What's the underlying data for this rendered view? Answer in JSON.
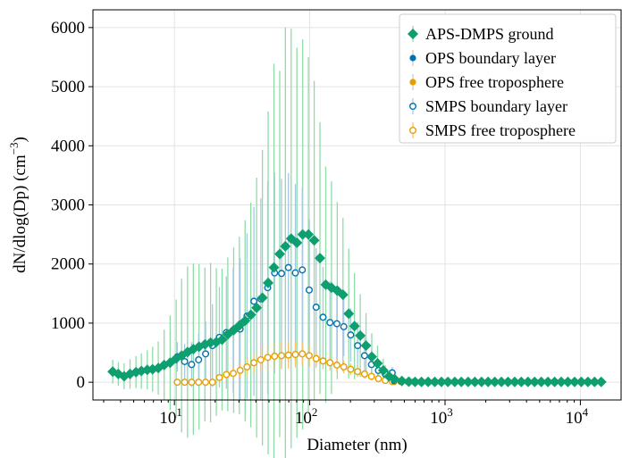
{
  "chart_data": {
    "type": "scatter",
    "xlabel": "Diameter (nm)",
    "ylabel": "dN/dlog(Dp) (cm",
    "ylabel_superscript": "−3",
    "ylabel_close": ")",
    "x_scale": "log",
    "xlim": [
      2.5,
      20000
    ],
    "ylim": [
      -300,
      6300
    ],
    "x_tick_base": "10",
    "x_ticks": [
      {
        "value": 10,
        "exponent": "1"
      },
      {
        "value": 100,
        "exponent": "2"
      },
      {
        "value": 1000,
        "exponent": "3"
      },
      {
        "value": 10000,
        "exponent": "4"
      }
    ],
    "y_ticks": [
      0,
      1000,
      2000,
      3000,
      4000,
      5000,
      6000
    ],
    "grid": true,
    "legend_position": "top-right",
    "series": [
      {
        "name": "APS-DMPS ground",
        "marker": "diamond-filled",
        "color": "#0d9f6f",
        "error_color": "#8fdca6",
        "points": [
          [
            3.5,
            180,
            200
          ],
          [
            3.85,
            140,
            200
          ],
          [
            4.25,
            100,
            220
          ],
          [
            4.7,
            140,
            250
          ],
          [
            5.2,
            170,
            270
          ],
          [
            5.7,
            190,
            300
          ],
          [
            6.3,
            210,
            330
          ],
          [
            6.9,
            220,
            380
          ],
          [
            7.6,
            240,
            450
          ],
          [
            8.4,
            290,
            600
          ],
          [
            9.3,
            330,
            800
          ],
          [
            10.3,
            400,
            1000
          ],
          [
            11.3,
            450,
            1300
          ],
          [
            12.5,
            510,
            1450
          ],
          [
            13.8,
            560,
            1450
          ],
          [
            15.2,
            600,
            1400
          ],
          [
            16.8,
            640,
            1300
          ],
          [
            18.5,
            670,
            1350
          ],
          [
            20.4,
            680,
            1250
          ],
          [
            22.5,
            720,
            1200
          ],
          [
            24.8,
            810,
            1300
          ],
          [
            27.4,
            880,
            1400
          ],
          [
            30.2,
            960,
            1500
          ],
          [
            33.3,
            1040,
            1700
          ],
          [
            36.7,
            1140,
            1900
          ],
          [
            40.5,
            1260,
            2200
          ],
          [
            44.7,
            1430,
            2500
          ],
          [
            49.3,
            1680,
            2900
          ],
          [
            54.4,
            1940,
            3450
          ],
          [
            60,
            2170,
            3100
          ],
          [
            66.1,
            2300,
            3700
          ],
          [
            72.9,
            2430,
            3550
          ],
          [
            80.4,
            2360,
            3300
          ],
          [
            88.7,
            2500,
            3300
          ],
          [
            97.8,
            2500,
            3000
          ],
          [
            107.9,
            2400,
            2700
          ],
          [
            119,
            2100,
            2300
          ],
          [
            131.3,
            1650,
            2000
          ],
          [
            144.8,
            1600,
            1800
          ],
          [
            159.7,
            1550,
            1500
          ],
          [
            176.1,
            1480,
            1300
          ],
          [
            194.2,
            1160,
            1100
          ],
          [
            214.2,
            950,
            900
          ],
          [
            236.3,
            790,
            700
          ],
          [
            260.6,
            620,
            550
          ],
          [
            287.4,
            430,
            400
          ],
          [
            317,
            320,
            300
          ],
          [
            349.6,
            200,
            200
          ],
          [
            385.6,
            100,
            100
          ],
          [
            425.3,
            50,
            60
          ],
          [
            480,
            20,
            0
          ],
          [
            540,
            10,
            0
          ],
          [
            600,
            5,
            0
          ],
          [
            670,
            5,
            0
          ],
          [
            750,
            5,
            0
          ],
          [
            840,
            5,
            0
          ],
          [
            940,
            5,
            0
          ],
          [
            1050,
            5,
            0
          ],
          [
            1180,
            5,
            0
          ],
          [
            1320,
            5,
            0
          ],
          [
            1480,
            5,
            0
          ],
          [
            1660,
            5,
            0
          ],
          [
            1860,
            5,
            0
          ],
          [
            2080,
            5,
            0
          ],
          [
            2330,
            5,
            0
          ],
          [
            2610,
            5,
            0
          ],
          [
            2920,
            5,
            0
          ],
          [
            3270,
            5,
            0
          ],
          [
            3660,
            5,
            0
          ],
          [
            4100,
            5,
            0
          ],
          [
            4590,
            5,
            0
          ],
          [
            5140,
            5,
            0
          ],
          [
            5760,
            5,
            0
          ],
          [
            6450,
            5,
            0
          ],
          [
            7220,
            5,
            0
          ],
          [
            8090,
            5,
            0
          ],
          [
            9060,
            5,
            0
          ],
          [
            10150,
            5,
            0
          ],
          [
            11370,
            5,
            0
          ],
          [
            12730,
            5,
            0
          ],
          [
            14260,
            5,
            0
          ]
        ]
      },
      {
        "name": "OPS boundary layer",
        "marker": "circle-filled",
        "color": "#0072b2",
        "points": [
          [
            420,
            20
          ],
          [
            470,
            15
          ],
          [
            530,
            10
          ],
          [
            590,
            10
          ],
          [
            660,
            8
          ],
          [
            740,
            8
          ],
          [
            830,
            5
          ],
          [
            930,
            5
          ],
          [
            1040,
            5
          ],
          [
            1170,
            5
          ],
          [
            1310,
            5
          ],
          [
            1470,
            5
          ],
          [
            1650,
            5
          ],
          [
            1850,
            5
          ],
          [
            2070,
            5
          ],
          [
            2320,
            5
          ],
          [
            2600,
            5
          ],
          [
            2910,
            5
          ],
          [
            3260,
            5
          ],
          [
            3650,
            5
          ],
          [
            4090,
            5
          ],
          [
            4580,
            5
          ],
          [
            5130,
            5
          ],
          [
            5750,
            5
          ],
          [
            6440,
            5
          ]
        ]
      },
      {
        "name": "OPS free troposphere",
        "marker": "circle-filled",
        "color": "#e69f00",
        "points": [
          [
            420,
            5
          ],
          [
            470,
            5
          ],
          [
            530,
            5
          ],
          [
            590,
            5
          ],
          [
            660,
            5
          ],
          [
            740,
            5
          ],
          [
            830,
            5
          ],
          [
            930,
            5
          ],
          [
            1040,
            5
          ],
          [
            1170,
            5
          ],
          [
            1310,
            5
          ],
          [
            1470,
            5
          ],
          [
            1650,
            5
          ],
          [
            1850,
            5
          ],
          [
            2070,
            5
          ],
          [
            2320,
            5
          ],
          [
            2600,
            5
          ],
          [
            2910,
            5
          ],
          [
            3260,
            5
          ],
          [
            3650,
            5
          ],
          [
            4090,
            5
          ],
          [
            4580,
            5
          ],
          [
            5130,
            5
          ],
          [
            5750,
            5
          ],
          [
            6440,
            5
          ]
        ]
      },
      {
        "name": "SMPS boundary layer",
        "marker": "circle-open",
        "color": "#0072b2",
        "error_color": "#a6c8e4",
        "points": [
          [
            10.5,
            430,
            250
          ],
          [
            11.9,
            350,
            300
          ],
          [
            13.4,
            300,
            380
          ],
          [
            15.1,
            380,
            450
          ],
          [
            17,
            480,
            550
          ],
          [
            19.1,
            620,
            700
          ],
          [
            21.5,
            760,
            850
          ],
          [
            24.2,
            840,
            950
          ],
          [
            27.2,
            880,
            1050
          ],
          [
            30.6,
            900,
            1200
          ],
          [
            34.4,
            1120,
            1400
          ],
          [
            38.7,
            1370,
            1600
          ],
          [
            43.5,
            1410,
            1700
          ],
          [
            48.9,
            1600,
            1800
          ],
          [
            55,
            1850,
            1700
          ],
          [
            61.9,
            1840,
            1600
          ],
          [
            69.6,
            1940,
            1600
          ],
          [
            78.3,
            1850,
            1500
          ],
          [
            88.1,
            1900,
            1400
          ],
          [
            99.1,
            1560,
            1200
          ],
          [
            111.5,
            1270,
            1000
          ],
          [
            125.4,
            1100,
            850
          ],
          [
            141.1,
            1010,
            700
          ],
          [
            158.7,
            990,
            600
          ],
          [
            178.5,
            940,
            500
          ],
          [
            200.8,
            800,
            450
          ],
          [
            225.9,
            620,
            400
          ],
          [
            254.1,
            450,
            350
          ],
          [
            285.9,
            300,
            250
          ],
          [
            321.6,
            200,
            200
          ],
          [
            361.8,
            140,
            150
          ],
          [
            407,
            160,
            100
          ]
        ]
      },
      {
        "name": "SMPS free troposphere",
        "marker": "circle-open",
        "color": "#e69f00",
        "error_color": "#f5c36e",
        "points": [
          [
            10.5,
            0,
            0
          ],
          [
            11.9,
            0,
            0
          ],
          [
            13.4,
            0,
            0
          ],
          [
            15.1,
            0,
            0
          ],
          [
            17,
            0,
            0
          ],
          [
            19.1,
            0,
            0
          ],
          [
            21.5,
            80,
            60
          ],
          [
            24.2,
            130,
            80
          ],
          [
            27.2,
            150,
            100
          ],
          [
            30.6,
            200,
            120
          ],
          [
            34.4,
            260,
            150
          ],
          [
            38.7,
            330,
            170
          ],
          [
            43.5,
            380,
            200
          ],
          [
            48.9,
            420,
            230
          ],
          [
            55,
            440,
            230
          ],
          [
            61.9,
            450,
            230
          ],
          [
            69.6,
            460,
            230
          ],
          [
            78.3,
            470,
            220
          ],
          [
            88.1,
            480,
            200
          ],
          [
            99.1,
            450,
            180
          ],
          [
            111.5,
            400,
            160
          ],
          [
            125.4,
            360,
            140
          ],
          [
            141.1,
            330,
            130
          ],
          [
            158.7,
            290,
            120
          ],
          [
            178.5,
            260,
            110
          ],
          [
            200.8,
            220,
            100
          ],
          [
            225.9,
            180,
            90
          ],
          [
            254.1,
            140,
            80
          ],
          [
            285.9,
            100,
            60
          ],
          [
            321.6,
            60,
            40
          ],
          [
            361.8,
            30,
            30
          ],
          [
            407,
            10,
            20
          ]
        ]
      }
    ]
  }
}
